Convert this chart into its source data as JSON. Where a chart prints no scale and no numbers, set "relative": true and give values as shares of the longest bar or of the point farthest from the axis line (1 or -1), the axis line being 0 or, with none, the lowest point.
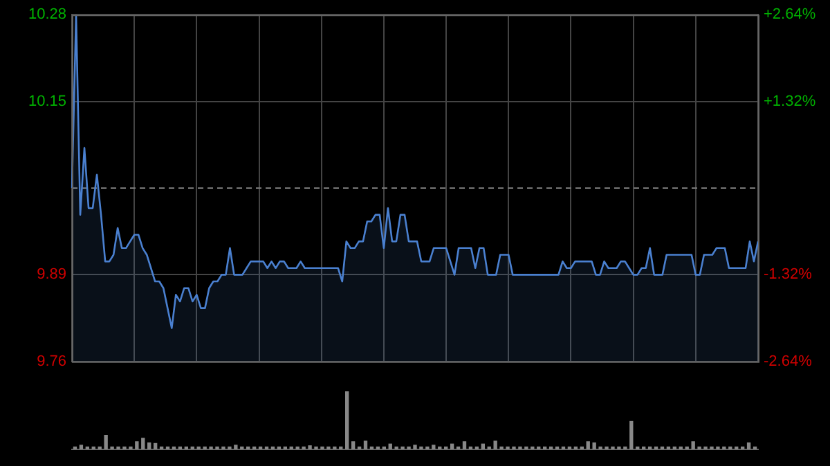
{
  "chart_data": [
    {
      "type": "area",
      "categories": [
        null,
        null,
        null,
        null,
        null,
        null,
        null,
        null,
        null,
        null,
        null,
        null,
        null,
        null,
        null,
        null,
        null,
        null,
        null,
        null,
        null,
        null,
        null,
        null,
        null,
        null,
        null,
        null,
        null,
        null,
        null,
        null,
        null,
        null,
        null,
        null,
        null,
        null,
        null,
        null,
        null,
        null,
        null,
        null,
        null,
        null,
        null,
        null,
        null,
        null,
        null,
        null,
        null,
        null,
        null,
        null,
        null,
        null,
        null,
        null,
        null,
        null,
        null,
        null,
        null,
        null,
        null,
        null,
        null,
        null,
        null,
        null,
        null,
        null,
        null,
        null,
        null,
        null,
        null,
        null,
        null,
        null,
        null,
        null,
        null,
        null,
        null,
        null,
        null,
        null,
        null,
        null,
        null,
        null,
        null,
        null,
        null,
        null,
        null,
        null,
        null,
        null,
        null,
        null,
        null,
        null,
        null,
        null,
        null,
        null,
        null,
        null,
        null,
        null,
        null,
        null,
        null,
        null,
        null,
        null,
        null,
        null,
        null,
        null,
        null,
        null,
        null,
        null,
        null,
        null,
        null,
        null,
        null,
        null,
        null,
        null,
        null,
        null,
        null,
        null,
        null,
        null,
        null,
        null,
        null,
        null,
        null,
        null,
        null,
        null,
        null,
        null,
        null,
        null,
        null,
        null,
        null,
        null,
        null,
        null,
        null,
        null,
        null,
        null,
        null,
        null
      ],
      "series": [
        {
          "color": "#4a80d0",
          "values": [
            10.02,
            10.28,
            9.98,
            10.08,
            9.99,
            9.99,
            10.04,
            9.98,
            9.91,
            9.91,
            9.92,
            9.96,
            9.93,
            9.93,
            9.94,
            9.95,
            9.95,
            9.93,
            9.92,
            9.9,
            9.88,
            9.88,
            9.87,
            9.84,
            9.81,
            9.86,
            9.85,
            9.87,
            9.87,
            9.85,
            9.86,
            9.84,
            9.84,
            9.87,
            9.88,
            9.88,
            9.89,
            9.89,
            9.93,
            9.89,
            9.89,
            9.89,
            9.9,
            9.91,
            9.91,
            9.91,
            9.91,
            9.9,
            9.91,
            9.9,
            9.91,
            9.91,
            9.9,
            9.9,
            9.9,
            9.91,
            9.9,
            9.9,
            9.9,
            9.9,
            9.9,
            9.9,
            9.9,
            9.9,
            9.9,
            9.88,
            9.94,
            9.93,
            9.93,
            9.94,
            9.94,
            9.97,
            9.97,
            9.98,
            9.98,
            9.93,
            9.99,
            9.94,
            9.94,
            9.98,
            9.98,
            9.94,
            9.94,
            9.94,
            9.91,
            9.91,
            9.91,
            9.93,
            9.93,
            9.93,
            9.93,
            9.91,
            9.89,
            9.93,
            9.93,
            9.93,
            9.93,
            9.9,
            9.93,
            9.93,
            9.89,
            9.89,
            9.89,
            9.92,
            9.92,
            9.92,
            9.89,
            9.89,
            9.89,
            9.89,
            9.89,
            9.89,
            9.89,
            9.89,
            9.89,
            9.89,
            9.89,
            9.89,
            9.91,
            9.9,
            9.9,
            9.91,
            9.91,
            9.91,
            9.91,
            9.91,
            9.89,
            9.89,
            9.91,
            9.9,
            9.9,
            9.9,
            9.91,
            9.91,
            9.9,
            9.89,
            9.89,
            9.9,
            9.9,
            9.93,
            9.89,
            9.89,
            9.89,
            9.92,
            9.92,
            9.92,
            9.92,
            9.92,
            9.92,
            9.92,
            9.89,
            9.89,
            9.92,
            9.92,
            9.92,
            9.93,
            9.93,
            9.93,
            9.9,
            9.9,
            9.9,
            9.9,
            9.9,
            9.94,
            9.91,
            9.94
          ]
        }
      ],
      "ylim": [
        9.76,
        10.28
      ],
      "yticks": [
        9.76,
        9.89,
        10.15,
        10.28
      ],
      "y2lim": [
        -2.64,
        2.64
      ],
      "y2ticks": [
        {
          "value": -2.64,
          "label": "-2.64%"
        },
        {
          "value": -1.32,
          "label": "-1.32%"
        },
        {
          "value": 1.32,
          "label": "+1.32%"
        },
        {
          "value": 2.64,
          "label": "+2.64%"
        }
      ],
      "ref_lines": [
        {
          "axis": "y",
          "value": 10.02,
          "color": "#777777",
          "line_style": "dashed"
        }
      ],
      "grid": true,
      "marker": "none",
      "line_style": "solid"
    },
    {
      "type": "bar",
      "relative": true,
      "color": "#888888",
      "categories": [
        null,
        null,
        null,
        null,
        null,
        null,
        null,
        null,
        null,
        null,
        null,
        null,
        null,
        null,
        null,
        null,
        null,
        null,
        null,
        null,
        null,
        null,
        null,
        null,
        null,
        null,
        null,
        null,
        null,
        null,
        null,
        null,
        null,
        null,
        null,
        null,
        null,
        null,
        null,
        null,
        null,
        null,
        null,
        null,
        null,
        null,
        null,
        null,
        null,
        null,
        null,
        null,
        null,
        null,
        null,
        null,
        null,
        null,
        null,
        null,
        null,
        null,
        null,
        null,
        null,
        null,
        null,
        null,
        null,
        null,
        null,
        null,
        null,
        null,
        null,
        null,
        null,
        null,
        null,
        null,
        null,
        null,
        null,
        null,
        null,
        null,
        null,
        null,
        null,
        null,
        null,
        null,
        null,
        null,
        null,
        null,
        null,
        null,
        null,
        null,
        null,
        null,
        null,
        null,
        null,
        null,
        null,
        null,
        null,
        null,
        null
      ],
      "values": [
        0.05,
        0.08,
        0.05,
        0.05,
        0.05,
        0.25,
        0.05,
        0.05,
        0.05,
        0.05,
        0.14,
        0.2,
        0.12,
        0.11,
        0.05,
        0.05,
        0.05,
        0.05,
        0.05,
        0.05,
        0.05,
        0.05,
        0.05,
        0.05,
        0.05,
        0.05,
        0.08,
        0.05,
        0.05,
        0.05,
        0.05,
        0.05,
        0.05,
        0.05,
        0.05,
        0.05,
        0.05,
        0.05,
        0.07,
        0.05,
        0.05,
        0.05,
        0.05,
        0.05,
        1,
        0.14,
        0.05,
        0.15,
        0.05,
        0.05,
        0.05,
        0.1,
        0.05,
        0.05,
        0.05,
        0.08,
        0.05,
        0.05,
        0.08,
        0.05,
        0.05,
        0.1,
        0.05,
        0.14,
        0.05,
        0.05,
        0.1,
        0.05,
        0.15,
        0.05,
        0.05,
        0.05,
        0.05,
        0.05,
        0.05,
        0.05,
        0.05,
        0.05,
        0.05,
        0.05,
        0.05,
        0.05,
        0.05,
        0.14,
        0.12,
        0.05,
        0.05,
        0.05,
        0.05,
        0.05,
        0.49,
        0.05,
        0.05,
        0.05,
        0.05,
        0.05,
        0.05,
        0.05,
        0.05,
        0.05,
        0.14,
        0.05,
        0.05,
        0.05,
        0.05,
        0.05,
        0.05,
        0.05,
        0.05,
        0.12,
        0.05
      ]
    }
  ]
}
